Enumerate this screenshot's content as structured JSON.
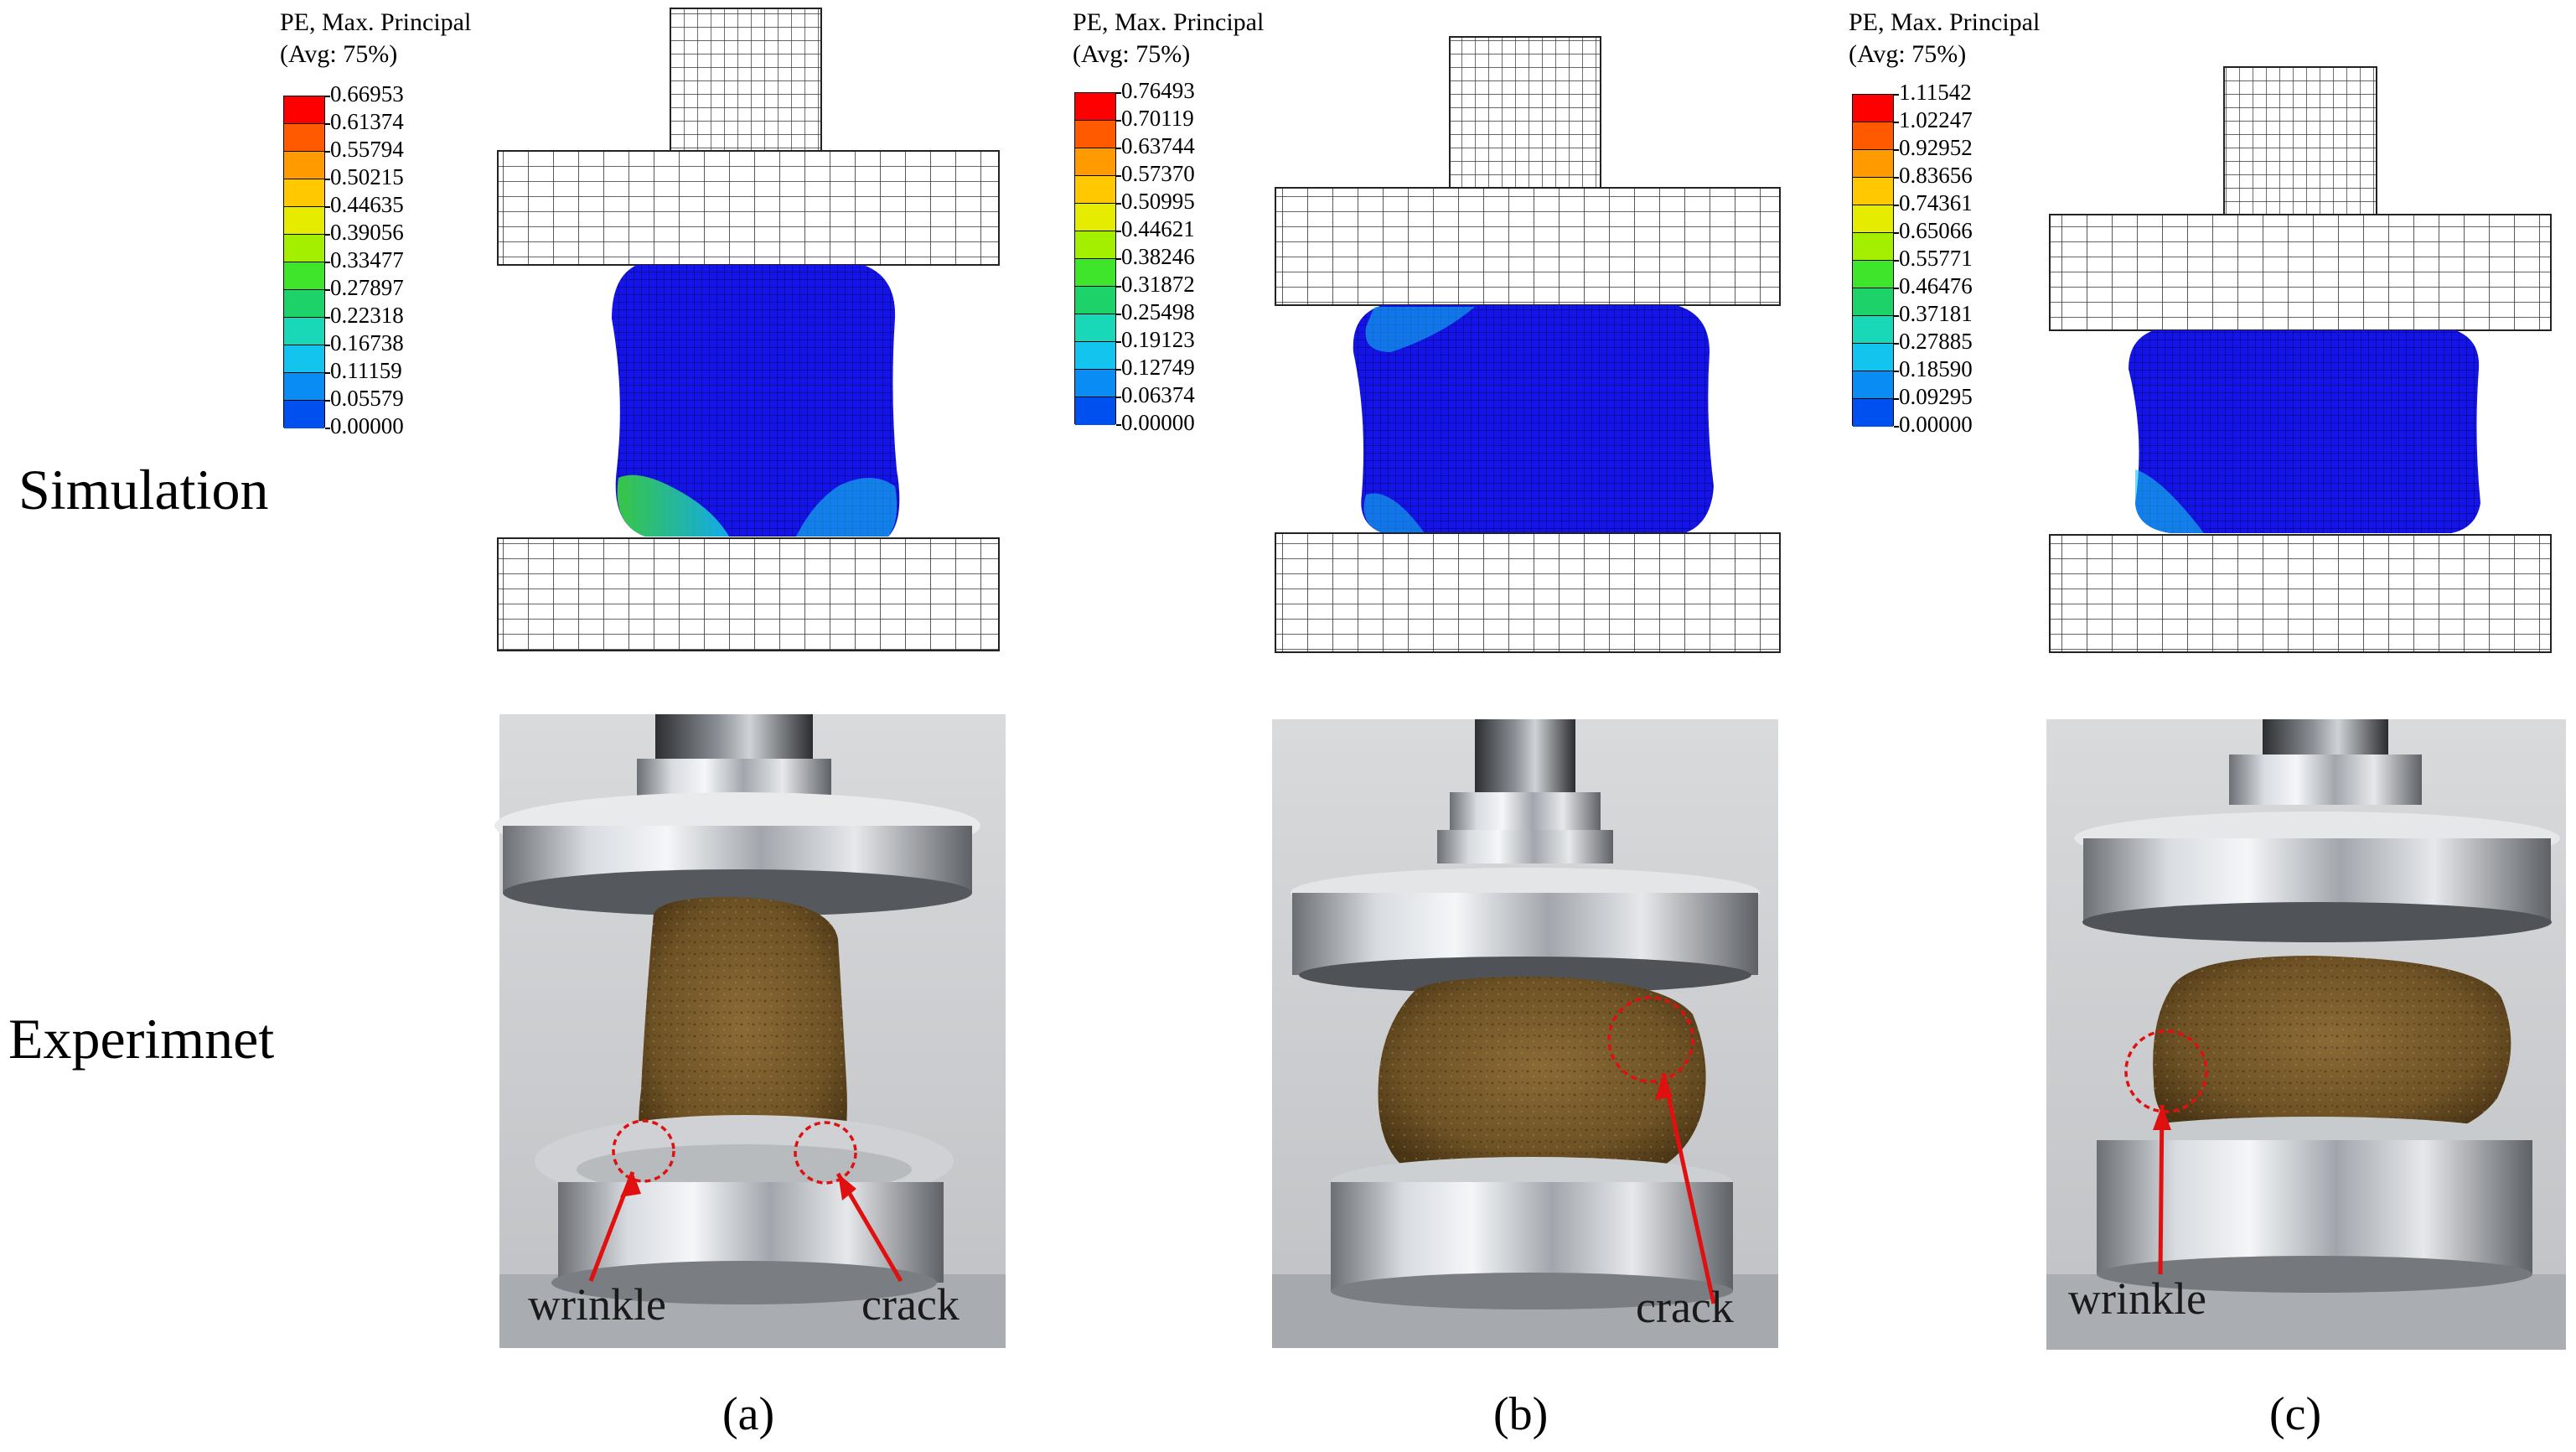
{
  "row_labels": {
    "simulation": "Simulation",
    "experiment": "Experimnet"
  },
  "panels": [
    {
      "caption": "(a)",
      "legend": {
        "title_line1": "PE, Max. Principal",
        "title_line2": "(Avg: 75%)",
        "ticks": [
          "0.66953",
          "0.61374",
          "0.55794",
          "0.50215",
          "0.44635",
          "0.39056",
          "0.33477",
          "0.27897",
          "0.22318",
          "0.16738",
          "0.11159",
          "0.05579",
          "0.00000"
        ]
      },
      "annotations": [
        "wrinkle",
        "crack"
      ]
    },
    {
      "caption": "(b)",
      "legend": {
        "title_line1": "PE, Max. Principal",
        "title_line2": "(Avg: 75%)",
        "ticks": [
          "0.76493",
          "0.70119",
          "0.63744",
          "0.57370",
          "0.50995",
          "0.44621",
          "0.38246",
          "0.31872",
          "0.25498",
          "0.19123",
          "0.12749",
          "0.06374",
          "0.00000"
        ]
      },
      "annotations": [
        "crack"
      ]
    },
    {
      "caption": "(c)",
      "legend": {
        "title_line1": "PE, Max. Principal",
        "title_line2": "(Avg: 75%)",
        "ticks": [
          "1.11542",
          "1.02247",
          "0.92952",
          "0.83656",
          "0.74361",
          "0.65066",
          "0.55771",
          "0.46476",
          "0.37181",
          "0.27885",
          "0.18590",
          "0.09295",
          "0.00000"
        ]
      },
      "annotations": [
        "wrinkle"
      ]
    }
  ],
  "colors": {
    "colormap": [
      "#ff0000",
      "#ff5a00",
      "#ff9a00",
      "#ffc800",
      "#e6ec00",
      "#a4ee00",
      "#3fe52a",
      "#1ed26a",
      "#18d8b8",
      "#12c4ee",
      "#0a8cf5",
      "#0050f0",
      "#0000ff"
    ],
    "fe_blue": "#1414e8",
    "mesh_line": "#333333",
    "annotation_red": "#e01010"
  }
}
